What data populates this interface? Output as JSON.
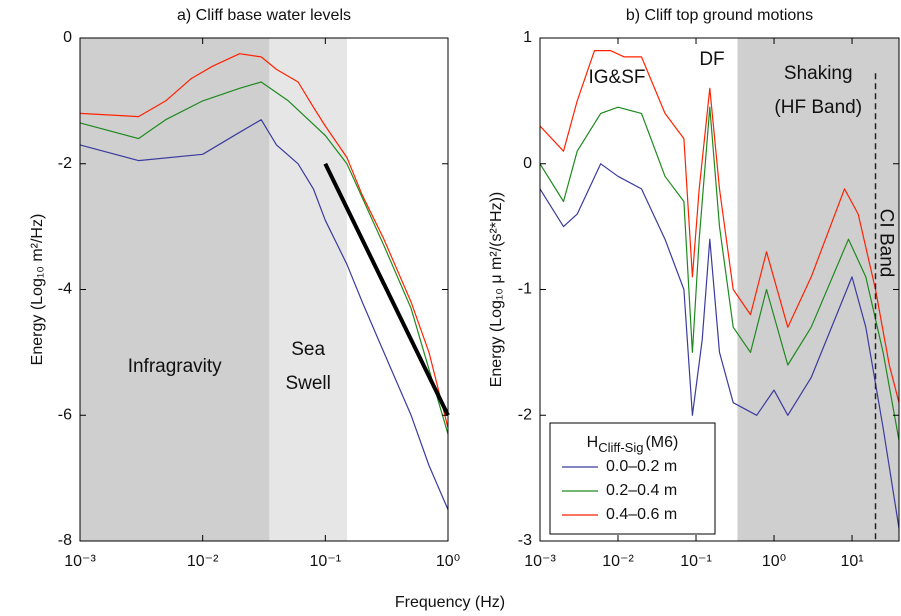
{
  "xlabel": "Frequency (Hz)",
  "chart_data": [
    {
      "type": "line",
      "title": "a) Cliff base water levels",
      "ylabel": "Energy (Log₁₀ m²/Hz)",
      "log_x": true,
      "xlim": [
        0.001,
        1
      ],
      "ylim": [
        -8,
        0
      ],
      "xticks": [
        {
          "value": 0.001,
          "label": "10⁻³"
        },
        {
          "value": 0.01,
          "label": "10⁻²"
        },
        {
          "value": 0.1,
          "label": "10⁻¹"
        },
        {
          "value": 1,
          "label": "10⁰"
        }
      ],
      "yticks": [
        0,
        -2,
        -4,
        -6,
        -8
      ],
      "bands": [
        {
          "from": 0.001,
          "to": 0.035,
          "color": "#cfcfcf",
          "label": [
            "Infragravity"
          ]
        },
        {
          "from": 0.035,
          "to": 0.15,
          "color": "#e6e6e6",
          "label": [
            "Sea",
            "Swell"
          ]
        }
      ],
      "series": [
        {
          "color": "#ff2200",
          "x": [
            0.001,
            0.003,
            0.005,
            0.008,
            0.012,
            0.02,
            0.03,
            0.04,
            0.06,
            0.08,
            0.1,
            0.15,
            0.2,
            0.3,
            0.5,
            0.7,
            1
          ],
          "values": [
            -1.2,
            -1.25,
            -1.0,
            -0.65,
            -0.45,
            -0.25,
            -0.3,
            -0.5,
            -0.7,
            -1.1,
            -1.4,
            -1.9,
            -2.5,
            -3.2,
            -4.2,
            -5.0,
            -6.2
          ]
        },
        {
          "color": "#1e8a1e",
          "x": [
            0.001,
            0.003,
            0.005,
            0.01,
            0.02,
            0.03,
            0.05,
            0.1,
            0.15,
            0.3,
            0.5,
            1
          ],
          "values": [
            -1.35,
            -1.6,
            -1.3,
            -1.0,
            -0.8,
            -0.7,
            -1.0,
            -1.55,
            -2.0,
            -3.3,
            -4.3,
            -6.3
          ]
        },
        {
          "color": "#3b3b9e",
          "x": [
            0.001,
            0.003,
            0.01,
            0.02,
            0.03,
            0.04,
            0.06,
            0.08,
            0.1,
            0.15,
            0.2,
            0.3,
            0.5,
            0.7,
            1
          ],
          "values": [
            -1.7,
            -1.95,
            -1.85,
            -1.5,
            -1.3,
            -1.7,
            -2.0,
            -2.4,
            -2.9,
            -3.6,
            -4.2,
            -5.0,
            -6.0,
            -6.8,
            -7.5
          ]
        },
        {
          "color": "#000000",
          "width": 4,
          "x": [
            0.1,
            1
          ],
          "values": [
            -2.0,
            -6.0
          ]
        }
      ]
    },
    {
      "type": "line",
      "title": "b) Cliff top ground motions",
      "ylabel": "Energy (Log₁₀ μ m²/(s²*Hz))",
      "log_x": true,
      "xlim": [
        0.001,
        40
      ],
      "ylim": [
        -3,
        1
      ],
      "xticks": [
        {
          "value": 0.001,
          "label": "10⁻³"
        },
        {
          "value": 0.01,
          "label": "10⁻²"
        },
        {
          "value": 0.1,
          "label": "10⁻¹"
        },
        {
          "value": 1,
          "label": "10⁰"
        },
        {
          "value": 10,
          "label": "10¹"
        }
      ],
      "yticks": [
        1,
        0,
        -1,
        -2,
        -3
      ],
      "bands": [
        {
          "from": 0.34,
          "to": 40,
          "color": "#cfcfcf",
          "label": [
            "Shaking",
            "(HF Band)"
          ]
        }
      ],
      "vlines": [
        {
          "value": 20,
          "label": "CI Band"
        }
      ],
      "annotations": [
        "IG&SF",
        "DF"
      ],
      "legend": {
        "loc": "lower left",
        "title": {
          "main": "H",
          "sub": "Cliff-Sig",
          "suffix": "(M6)"
        }
      },
      "series": [
        {
          "name": "0.0–0.2 m",
          "color": "#3b3b9e",
          "x": [
            0.001,
            0.002,
            0.003,
            0.006,
            0.01,
            0.02,
            0.04,
            0.07,
            0.09,
            0.12,
            0.15,
            0.2,
            0.3,
            0.6,
            1,
            1.5,
            3,
            10,
            15,
            25,
            40
          ],
          "values": [
            -0.2,
            -0.5,
            -0.4,
            0.0,
            -0.1,
            -0.2,
            -0.6,
            -1.0,
            -2.0,
            -1.4,
            -0.6,
            -1.5,
            -1.9,
            -2.0,
            -1.8,
            -2.0,
            -1.7,
            -0.9,
            -1.3,
            -2.1,
            -2.9
          ]
        },
        {
          "name": "0.2–0.4 m",
          "color": "#1e8a1e",
          "x": [
            0.001,
            0.002,
            0.003,
            0.006,
            0.01,
            0.02,
            0.04,
            0.07,
            0.09,
            0.11,
            0.15,
            0.2,
            0.3,
            0.5,
            0.8,
            1.5,
            3,
            9,
            15,
            25,
            40
          ],
          "values": [
            0.0,
            -0.3,
            0.1,
            0.4,
            0.45,
            0.4,
            -0.1,
            -0.3,
            -1.5,
            -0.6,
            0.45,
            -0.5,
            -1.3,
            -1.5,
            -1.0,
            -1.6,
            -1.3,
            -0.6,
            -0.9,
            -1.5,
            -2.2
          ]
        },
        {
          "name": "0.4–0.6 m",
          "color": "#ff2200",
          "x": [
            0.001,
            0.002,
            0.003,
            0.005,
            0.008,
            0.012,
            0.02,
            0.04,
            0.07,
            0.09,
            0.11,
            0.15,
            0.2,
            0.3,
            0.5,
            0.8,
            1.5,
            3,
            8,
            12,
            20,
            30,
            40
          ],
          "values": [
            0.3,
            0.1,
            0.5,
            0.9,
            0.9,
            0.85,
            0.85,
            0.4,
            0.2,
            -0.9,
            -0.2,
            0.6,
            -0.2,
            -1.0,
            -1.2,
            -0.7,
            -1.3,
            -0.9,
            -0.2,
            -0.4,
            -1.0,
            -1.6,
            -1.9
          ]
        }
      ]
    }
  ]
}
